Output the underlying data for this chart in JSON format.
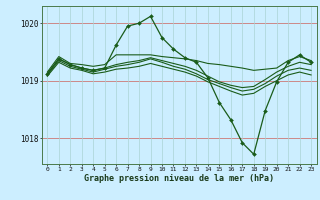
{
  "xlabel": "Graphe pression niveau de la mer (hPa)",
  "bg_color": "#cceeff",
  "line_color": "#1a5c1a",
  "grid_color": "#aad4d4",
  "red_line_color": "#cc8888",
  "ylim": [
    1017.55,
    1020.3
  ],
  "yticks": [
    1018,
    1019,
    1020
  ],
  "xticks": [
    0,
    1,
    2,
    3,
    4,
    5,
    6,
    7,
    8,
    9,
    10,
    11,
    12,
    13,
    14,
    15,
    16,
    17,
    18,
    19,
    20,
    21,
    22,
    23
  ],
  "series": [
    [
      1019.15,
      1019.42,
      1019.3,
      1019.28,
      1019.25,
      1019.28,
      1019.45,
      1019.45,
      1019.45,
      1019.45,
      1019.42,
      1019.4,
      1019.38,
      1019.35,
      1019.3,
      1019.28,
      1019.25,
      1019.22,
      1019.18,
      1019.2,
      1019.22,
      1019.35,
      1019.42,
      1019.35
    ],
    [
      1019.12,
      1019.38,
      1019.28,
      1019.22,
      1019.18,
      1019.22,
      1019.62,
      1019.95,
      1020.0,
      1020.12,
      1019.75,
      1019.55,
      1019.4,
      1019.32,
      1019.05,
      1018.62,
      1018.32,
      1017.92,
      1017.72,
      1018.48,
      1018.98,
      1019.32,
      1019.45,
      1019.32
    ],
    [
      1019.12,
      1019.38,
      1019.28,
      1019.22,
      1019.18,
      1019.22,
      1019.28,
      1019.32,
      1019.35,
      1019.4,
      1019.35,
      1019.3,
      1019.25,
      1019.18,
      1019.08,
      1018.98,
      1018.92,
      1018.88,
      1018.9,
      1019.02,
      1019.15,
      1019.25,
      1019.32,
      1019.28
    ],
    [
      1019.1,
      1019.35,
      1019.25,
      1019.2,
      1019.15,
      1019.2,
      1019.25,
      1019.28,
      1019.32,
      1019.38,
      1019.32,
      1019.25,
      1019.2,
      1019.12,
      1019.02,
      1018.95,
      1018.88,
      1018.82,
      1018.85,
      1018.95,
      1019.08,
      1019.18,
      1019.22,
      1019.18
    ],
    [
      1019.08,
      1019.32,
      1019.22,
      1019.18,
      1019.12,
      1019.15,
      1019.2,
      1019.22,
      1019.25,
      1019.3,
      1019.25,
      1019.2,
      1019.15,
      1019.08,
      1018.98,
      1018.9,
      1018.82,
      1018.75,
      1018.78,
      1018.9,
      1019.0,
      1019.1,
      1019.15,
      1019.1
    ]
  ]
}
